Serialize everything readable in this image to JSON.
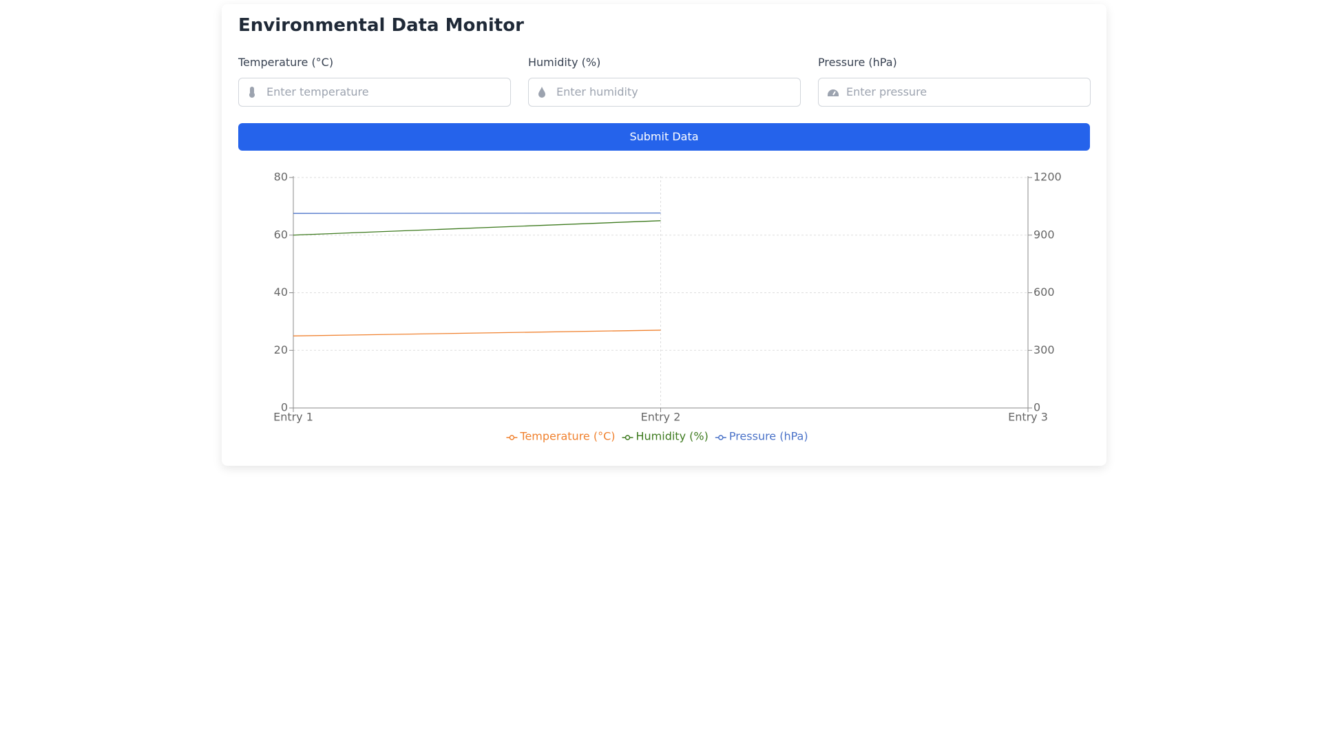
{
  "header": {
    "title": "Environmental Data Monitor"
  },
  "form": {
    "fields": [
      {
        "label": "Temperature (°C)",
        "placeholder": "Enter temperature"
      },
      {
        "label": "Humidity (%)",
        "placeholder": "Enter humidity"
      },
      {
        "label": "Pressure (hPa)",
        "placeholder": "Enter pressure"
      }
    ],
    "submit": "Submit Data"
  },
  "chart_data": {
    "type": "line",
    "categories": [
      "Entry 1",
      "Entry 2",
      "Entry 3"
    ],
    "series": [
      {
        "name": "Temperature (°C)",
        "color": "#f0812e",
        "values": [
          25,
          27,
          null
        ]
      },
      {
        "name": "Humidity (%)",
        "color": "#3d7a1e",
        "values": [
          60,
          65,
          null
        ]
      },
      {
        "name": "Pressure (hPa)",
        "color": "#4a72c8",
        "axis": "y2",
        "values": [
          1013,
          1015,
          null
        ]
      }
    ],
    "ylim": [
      0,
      80
    ],
    "yticks": [
      0,
      20,
      40,
      60,
      80
    ],
    "y2lim": [
      0,
      1200
    ],
    "y2ticks": [
      0,
      300,
      600,
      900,
      1200
    ],
    "grid": true,
    "legend": "bottom"
  }
}
